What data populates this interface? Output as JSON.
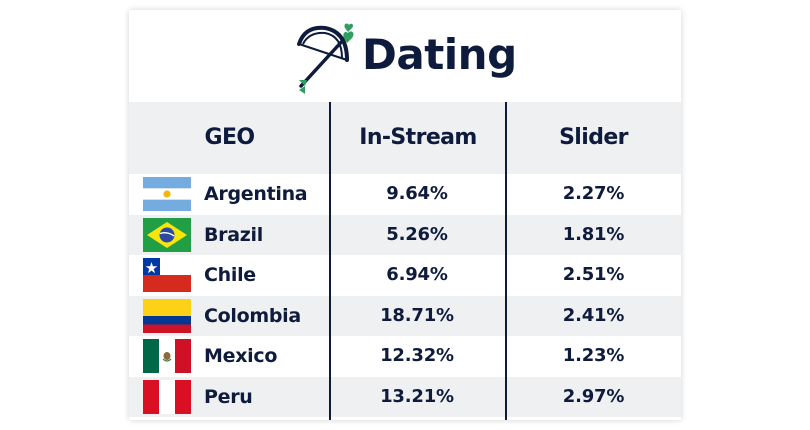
{
  "title": "Dating",
  "icon": "bow-and-arrow-icon",
  "colors": {
    "text": "#0f1b3d",
    "accent_green": "#2f9e5e",
    "header_bg": "#eef0f1",
    "divider": "#0f1b3d"
  },
  "columns": {
    "geo": "GEO",
    "instream": "In-Stream",
    "slider": "Slider"
  },
  "rows": [
    {
      "country": "Argentina",
      "flag": "argentina-flag-icon",
      "instream": "9.64%",
      "slider": "2.27%"
    },
    {
      "country": "Brazil",
      "flag": "brazil-flag-icon",
      "instream": "5.26%",
      "slider": "1.81%"
    },
    {
      "country": "Chile",
      "flag": "chile-flag-icon",
      "instream": "6.94%",
      "slider": "2.51%"
    },
    {
      "country": "Colombia",
      "flag": "colombia-flag-icon",
      "instream": "18.71%",
      "slider": "2.41%"
    },
    {
      "country": "Mexico",
      "flag": "mexico-flag-icon",
      "instream": "12.32%",
      "slider": "1.23%"
    },
    {
      "country": "Peru",
      "flag": "peru-flag-icon",
      "instream": "13.21%",
      "slider": "2.97%"
    }
  ]
}
